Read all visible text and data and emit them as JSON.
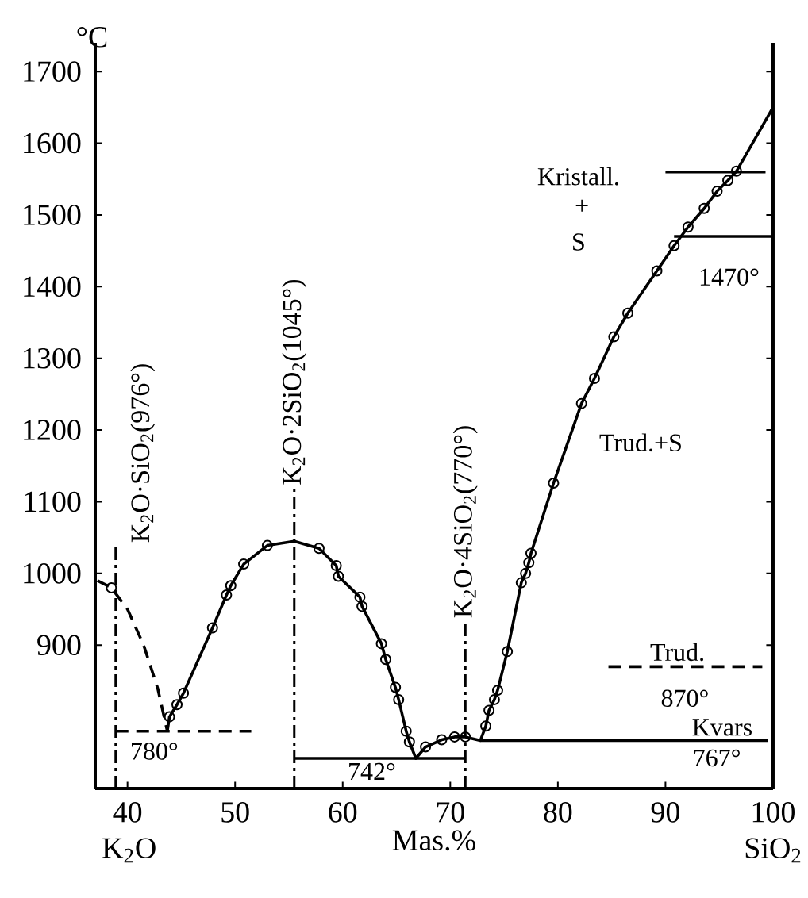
{
  "chart_data": {
    "type": "line",
    "xlabel": "Mas.%",
    "ylabel": "°C",
    "xlim": [
      37,
      100
    ],
    "ylim": [
      700,
      1740
    ],
    "xticks": [
      40,
      50,
      60,
      70,
      80,
      90,
      100
    ],
    "yticks": [
      900,
      1000,
      1100,
      1200,
      1300,
      1400,
      1500,
      1600,
      1700
    ],
    "grid": false,
    "series": [
      {
        "line_style": "dashed",
        "marker": "none",
        "color": "#000000",
        "x": [
          37.2,
          38.5,
          40.0,
          41.5,
          42.8,
          43.7
        ],
        "values": [
          990,
          980,
          950,
          900,
          840,
          780
        ]
      },
      {
        "line_style": "solid",
        "marker": "none",
        "color": "#000000",
        "x": [
          43.7,
          43.9,
          44.6,
          45.2,
          47.9,
          49.2,
          49.6,
          50.8,
          53.0,
          55.5,
          57.8,
          59.4,
          59.6,
          61.6,
          61.8,
          63.6,
          64.0,
          64.9,
          65.2,
          65.9,
          66.2,
          66.8,
          67.7,
          69.2,
          70.4,
          71.4,
          72.8,
          73.3,
          73.6,
          74.1,
          74.4,
          75.3,
          76.6,
          77.0,
          77.3,
          77.5,
          79.6,
          82.2,
          83.4,
          85.2,
          86.5,
          89.2,
          90.8,
          92.1,
          93.6,
          94.8,
          95.8,
          96.6,
          100
        ],
        "values": [
          780,
          800,
          817,
          833,
          924,
          970,
          983,
          1013,
          1039,
          1045,
          1035,
          1011,
          996,
          967,
          954,
          902,
          880,
          841,
          824,
          780,
          765,
          742,
          758,
          768,
          772,
          772,
          767,
          787,
          809,
          824,
          837,
          891,
          987,
          1000,
          1015,
          1028,
          1126,
          1237,
          1272,
          1330,
          1363,
          1422,
          1457,
          1483,
          1509,
          1533,
          1548,
          1561,
          1650
        ]
      },
      {
        "type": "scatter",
        "marker": "circle",
        "color": "#000000",
        "x": [
          38.5,
          43.9,
          44.6,
          45.2,
          47.9,
          49.2,
          49.6,
          50.8,
          53.0,
          57.8,
          59.4,
          59.6,
          61.6,
          61.8,
          63.6,
          64.0,
          64.9,
          65.2,
          65.9,
          66.2,
          67.7,
          69.2,
          70.4,
          71.4,
          73.3,
          73.6,
          74.1,
          74.4,
          75.3,
          76.6,
          77.0,
          77.3,
          77.5,
          79.6,
          82.2,
          83.4,
          85.2,
          86.5,
          89.2,
          90.8,
          92.1,
          93.6,
          94.8,
          95.8,
          96.6
        ],
        "values": [
          980,
          800,
          817,
          833,
          924,
          970,
          983,
          1013,
          1039,
          1035,
          1011,
          996,
          967,
          954,
          902,
          880,
          841,
          824,
          780,
          765,
          758,
          768,
          772,
          772,
          787,
          809,
          824,
          837,
          891,
          987,
          1000,
          1015,
          1028,
          1126,
          1237,
          1272,
          1330,
          1363,
          1422,
          1457,
          1483,
          1509,
          1533,
          1548,
          1561
        ]
      },
      {
        "line_style": "dashed",
        "marker": "none",
        "color": "#000000",
        "x": [
          38.9,
          51.5
        ],
        "values": [
          780,
          780
        ]
      },
      {
        "line_style": "solid",
        "marker": "none",
        "color": "#000000",
        "x": [
          55.5,
          71.4
        ],
        "values": [
          742,
          742
        ]
      },
      {
        "line_style": "solid",
        "marker": "none",
        "color": "#000000",
        "x": [
          72.8,
          99.5
        ],
        "values": [
          767,
          767
        ]
      },
      {
        "line_style": "dashed",
        "marker": "none",
        "color": "#000000",
        "x": [
          84.7,
          99
        ],
        "values": [
          870,
          870
        ]
      },
      {
        "line_style": "solid",
        "marker": "none",
        "color": "#000000",
        "x": [
          90.8,
          100
        ],
        "values": [
          1470,
          1470
        ]
      },
      {
        "line_style": "solid",
        "marker": "none",
        "color": "#000000",
        "x": [
          90,
          99.3
        ],
        "values": [
          1560,
          1560
        ]
      }
    ],
    "ref_lines": [
      {
        "axis": "x",
        "value": 38.9,
        "line_style": "dashdot",
        "label": "K$_{2}$O·SiO$_{2}$(976°)"
      },
      {
        "axis": "x",
        "value": 55.5,
        "line_style": "dashdot",
        "label": "K$_{2}$O·2SiO$_{2}$(1045°)"
      },
      {
        "axis": "x",
        "value": 71.4,
        "line_style": "dashdot",
        "label": "K$_{2}$O·4SiO$_{2}$(770°)"
      }
    ],
    "annotations": [
      "780°",
      "742°",
      "767°",
      "Kvars",
      "870°",
      "Trud.",
      "1470°",
      "Kristall.",
      "+",
      "S",
      "Trud.+S",
      "K$_{2}$O",
      "SiO$_{2}$"
    ]
  }
}
